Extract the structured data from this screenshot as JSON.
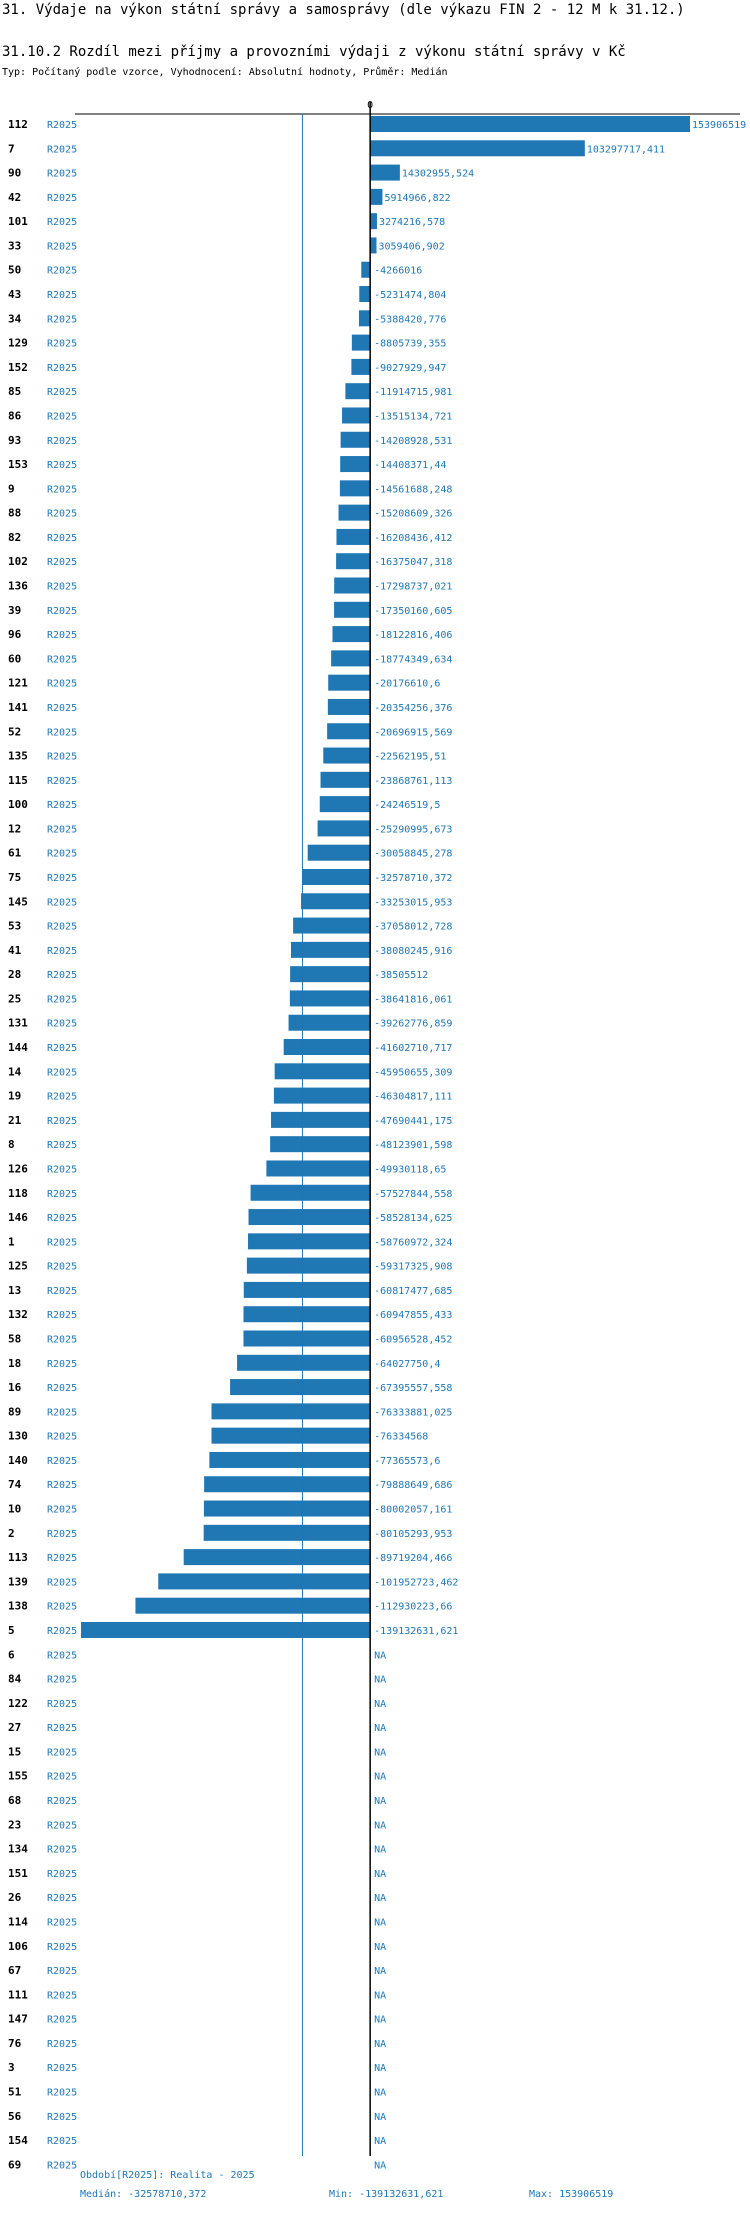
{
  "header": {
    "title": "31. Výdaje na výkon státní správy a samosprávy (dle výkazu FIN 2 - 12 M k 31.12.)",
    "subtitle": "31.10.2 Rozdíl mezi příjmy a provozními výdaji z výkonu státní správy v Kč",
    "type_line": "Typ: Počítaný podle vzorce, Vyhodnocení: Absolutní hodnoty, Průměr: Medián"
  },
  "chart_data": {
    "type": "bar",
    "orientation": "horizontal",
    "title": "31.10.2 Rozdíl mezi příjmy a provozními výdaji z výkonu státní správy v Kč",
    "series_name": "R2025",
    "zero_label": "0",
    "median": -32578710.372,
    "xlim": [
      -139132631.621,
      153906519
    ],
    "colors": {
      "bar": "#1f77b4",
      "median_line": "#1f77b4",
      "axis": "#000000"
    },
    "rows": [
      {
        "code": "112",
        "period": "R2025",
        "value": 153906519,
        "label": "153906519"
      },
      {
        "code": "7",
        "period": "R2025",
        "value": 103297717.411,
        "label": "103297717,411"
      },
      {
        "code": "90",
        "period": "R2025",
        "value": 14302955.524,
        "label": "14302955,524"
      },
      {
        "code": "42",
        "period": "R2025",
        "value": 5914966.822,
        "label": "5914966,822"
      },
      {
        "code": "101",
        "period": "R2025",
        "value": 3274216.578,
        "label": "3274216,578"
      },
      {
        "code": "33",
        "period": "R2025",
        "value": 3059406.902,
        "label": "3059406,902"
      },
      {
        "code": "50",
        "period": "R2025",
        "value": -4266016,
        "label": "-4266016"
      },
      {
        "code": "43",
        "period": "R2025",
        "value": -5231474.804,
        "label": "-5231474,804"
      },
      {
        "code": "34",
        "period": "R2025",
        "value": -5388420.776,
        "label": "-5388420,776"
      },
      {
        "code": "129",
        "period": "R2025",
        "value": -8805739.355,
        "label": "-8805739,355"
      },
      {
        "code": "152",
        "period": "R2025",
        "value": -9027929.947,
        "label": "-9027929,947"
      },
      {
        "code": "85",
        "period": "R2025",
        "value": -11914715.981,
        "label": "-11914715,981"
      },
      {
        "code": "86",
        "period": "R2025",
        "value": -13515134.721,
        "label": "-13515134,721"
      },
      {
        "code": "93",
        "period": "R2025",
        "value": -14208928.531,
        "label": "-14208928,531"
      },
      {
        "code": "153",
        "period": "R2025",
        "value": -14408371.44,
        "label": "-14408371,44"
      },
      {
        "code": "9",
        "period": "R2025",
        "value": -14561688.248,
        "label": "-14561688,248"
      },
      {
        "code": "88",
        "period": "R2025",
        "value": -15208609.326,
        "label": "-15208609,326"
      },
      {
        "code": "82",
        "period": "R2025",
        "value": -16208436.412,
        "label": "-16208436,412"
      },
      {
        "code": "102",
        "period": "R2025",
        "value": -16375047.318,
        "label": "-16375047,318"
      },
      {
        "code": "136",
        "period": "R2025",
        "value": -17298737.021,
        "label": "-17298737,021"
      },
      {
        "code": "39",
        "period": "R2025",
        "value": -17350160.605,
        "label": "-17350160,605"
      },
      {
        "code": "96",
        "period": "R2025",
        "value": -18122816.406,
        "label": "-18122816,406"
      },
      {
        "code": "60",
        "period": "R2025",
        "value": -18774349.634,
        "label": "-18774349,634"
      },
      {
        "code": "121",
        "period": "R2025",
        "value": -20176610.6,
        "label": "-20176610,6"
      },
      {
        "code": "141",
        "period": "R2025",
        "value": -20354256.376,
        "label": "-20354256,376"
      },
      {
        "code": "52",
        "period": "R2025",
        "value": -20696915.569,
        "label": "-20696915,569"
      },
      {
        "code": "135",
        "period": "R2025",
        "value": -22562195.51,
        "label": "-22562195,51"
      },
      {
        "code": "115",
        "period": "R2025",
        "value": -23868761.113,
        "label": "-23868761,113"
      },
      {
        "code": "100",
        "period": "R2025",
        "value": -24246519.5,
        "label": "-24246519,5"
      },
      {
        "code": "12",
        "period": "R2025",
        "value": -25290995.673,
        "label": "-25290995,673"
      },
      {
        "code": "61",
        "period": "R2025",
        "value": -30058845.278,
        "label": "-30058845,278"
      },
      {
        "code": "75",
        "period": "R2025",
        "value": -32578710.372,
        "label": "-32578710,372"
      },
      {
        "code": "145",
        "period": "R2025",
        "value": -33253015.953,
        "label": "-33253015,953"
      },
      {
        "code": "53",
        "period": "R2025",
        "value": -37058012.728,
        "label": "-37058012,728"
      },
      {
        "code": "41",
        "period": "R2025",
        "value": -38080245.916,
        "label": "-38080245,916"
      },
      {
        "code": "28",
        "period": "R2025",
        "value": -38505512,
        "label": "-38505512"
      },
      {
        "code": "25",
        "period": "R2025",
        "value": -38641816.061,
        "label": "-38641816,061"
      },
      {
        "code": "131",
        "period": "R2025",
        "value": -39262776.859,
        "label": "-39262776,859"
      },
      {
        "code": "144",
        "period": "R2025",
        "value": -41602710.717,
        "label": "-41602710,717"
      },
      {
        "code": "14",
        "period": "R2025",
        "value": -45950655.309,
        "label": "-45950655,309"
      },
      {
        "code": "19",
        "period": "R2025",
        "value": -46304817.111,
        "label": "-46304817,111"
      },
      {
        "code": "21",
        "period": "R2025",
        "value": -47690441.175,
        "label": "-47690441,175"
      },
      {
        "code": "8",
        "period": "R2025",
        "value": -48123901.598,
        "label": "-48123901,598"
      },
      {
        "code": "126",
        "period": "R2025",
        "value": -49930118.65,
        "label": "-49930118,65"
      },
      {
        "code": "118",
        "period": "R2025",
        "value": -57527844.558,
        "label": "-57527844,558"
      },
      {
        "code": "146",
        "period": "R2025",
        "value": -58528134.625,
        "label": "-58528134,625"
      },
      {
        "code": "1",
        "period": "R2025",
        "value": -58760972.324,
        "label": "-58760972,324"
      },
      {
        "code": "125",
        "period": "R2025",
        "value": -59317325.908,
        "label": "-59317325,908"
      },
      {
        "code": "13",
        "period": "R2025",
        "value": -60817477.685,
        "label": "-60817477,685"
      },
      {
        "code": "132",
        "period": "R2025",
        "value": -60947855.433,
        "label": "-60947855,433"
      },
      {
        "code": "58",
        "period": "R2025",
        "value": -60956528.452,
        "label": "-60956528,452"
      },
      {
        "code": "18",
        "period": "R2025",
        "value": -64027750.4,
        "label": "-64027750,4"
      },
      {
        "code": "16",
        "period": "R2025",
        "value": -67395557.558,
        "label": "-67395557,558"
      },
      {
        "code": "89",
        "period": "R2025",
        "value": -76333881.025,
        "label": "-76333881,025"
      },
      {
        "code": "130",
        "period": "R2025",
        "value": -76334568,
        "label": "-76334568"
      },
      {
        "code": "140",
        "period": "R2025",
        "value": -77365573.6,
        "label": "-77365573,6"
      },
      {
        "code": "74",
        "period": "R2025",
        "value": -79888649.686,
        "label": "-79888649,686"
      },
      {
        "code": "10",
        "period": "R2025",
        "value": -80002057.161,
        "label": "-80002057,161"
      },
      {
        "code": "2",
        "period": "R2025",
        "value": -80105293.953,
        "label": "-80105293,953"
      },
      {
        "code": "113",
        "period": "R2025",
        "value": -89719204.466,
        "label": "-89719204,466"
      },
      {
        "code": "139",
        "period": "R2025",
        "value": -101952723.462,
        "label": "-101952723,462"
      },
      {
        "code": "138",
        "period": "R2025",
        "value": -112930223.66,
        "label": "-112930223,66"
      },
      {
        "code": "5",
        "period": "R2025",
        "value": -139132631.621,
        "label": "-139132631,621"
      },
      {
        "code": "6",
        "period": "R2025",
        "value": null,
        "label": "NA"
      },
      {
        "code": "84",
        "period": "R2025",
        "value": null,
        "label": "NA"
      },
      {
        "code": "122",
        "period": "R2025",
        "value": null,
        "label": "NA"
      },
      {
        "code": "27",
        "period": "R2025",
        "value": null,
        "label": "NA"
      },
      {
        "code": "15",
        "period": "R2025",
        "value": null,
        "label": "NA"
      },
      {
        "code": "155",
        "period": "R2025",
        "value": null,
        "label": "NA"
      },
      {
        "code": "68",
        "period": "R2025",
        "value": null,
        "label": "NA"
      },
      {
        "code": "23",
        "period": "R2025",
        "value": null,
        "label": "NA"
      },
      {
        "code": "134",
        "period": "R2025",
        "value": null,
        "label": "NA"
      },
      {
        "code": "151",
        "period": "R2025",
        "value": null,
        "label": "NA"
      },
      {
        "code": "26",
        "period": "R2025",
        "value": null,
        "label": "NA"
      },
      {
        "code": "114",
        "period": "R2025",
        "value": null,
        "label": "NA"
      },
      {
        "code": "106",
        "period": "R2025",
        "value": null,
        "label": "NA"
      },
      {
        "code": "67",
        "period": "R2025",
        "value": null,
        "label": "NA"
      },
      {
        "code": "111",
        "period": "R2025",
        "value": null,
        "label": "NA"
      },
      {
        "code": "147",
        "period": "R2025",
        "value": null,
        "label": "NA"
      },
      {
        "code": "76",
        "period": "R2025",
        "value": null,
        "label": "NA"
      },
      {
        "code": "3",
        "period": "R2025",
        "value": null,
        "label": "NA"
      },
      {
        "code": "51",
        "period": "R2025",
        "value": null,
        "label": "NA"
      },
      {
        "code": "56",
        "period": "R2025",
        "value": null,
        "label": "NA"
      },
      {
        "code": "154",
        "period": "R2025",
        "value": null,
        "label": "NA"
      },
      {
        "code": "69",
        "period": "R2025",
        "value": null,
        "label": "NA"
      }
    ]
  },
  "footer": {
    "period_text": "Období[R2025]: Realita - 2025",
    "median_text": "Medián: -32578710,372",
    "min_text": "Min: -139132631,621",
    "max_text": "Max: 153906519"
  }
}
